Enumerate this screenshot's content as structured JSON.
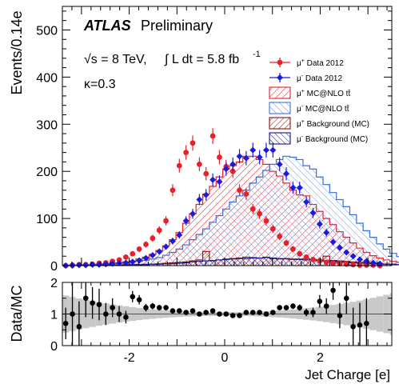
{
  "chart_data": [
    {
      "type": "histogram",
      "experiment": "ATLAS",
      "status": "Preliminary",
      "energy_label": "√s = 8 TeV,",
      "lumi_label": "∫ L dt = 5.8 fb",
      "lumi_sup": "-1",
      "kappa_label": "κ=0.3",
      "ylabel": "Events/0.14e",
      "ylim": [
        0,
        550
      ],
      "yticks": [
        0,
        100,
        200,
        300,
        400,
        500
      ],
      "bin_width": 0.14,
      "bin_start": -3.4,
      "series": [
        {
          "name": "μ⁺ MC@NLO tt̄",
          "kind": "signal_mc",
          "color": "#e8202a",
          "hatch": "up",
          "values": [
            0,
            1,
            1,
            2,
            2,
            3,
            4,
            5,
            6,
            8,
            10,
            14,
            18,
            24,
            32,
            42,
            55,
            70,
            90,
            110,
            130,
            152,
            168,
            188,
            205,
            212,
            220,
            232,
            232,
            225,
            215,
            200,
            190,
            175,
            160,
            150,
            148,
            130,
            115,
            100,
            87,
            72,
            60,
            48,
            37,
            28,
            21,
            16,
            12,
            9,
            7,
            5,
            4,
            3,
            2,
            2,
            1
          ]
        },
        {
          "name": "μ⁻ MC@NLO tt̄",
          "kind": "signal_mc",
          "color": "#3a6fd8",
          "hatch": "down",
          "values": [
            0,
            1,
            1,
            1,
            2,
            2,
            3,
            4,
            5,
            6,
            8,
            9,
            11,
            14,
            17,
            22,
            28,
            35,
            44,
            55,
            66,
            78,
            92,
            106,
            120,
            135,
            148,
            160,
            175,
            188,
            202,
            215,
            225,
            232,
            230,
            225,
            212,
            205,
            188,
            172,
            155,
            140,
            125,
            108,
            90,
            74,
            60,
            46,
            35,
            26,
            19,
            14,
            10,
            7,
            5,
            3,
            2
          ]
        },
        {
          "name": "μ⁺ Background (MC)",
          "kind": "background_mc",
          "color": "#8b1010",
          "hatch": "cross",
          "values": [
            0,
            0,
            0,
            0,
            0,
            1,
            1,
            1,
            1,
            2,
            2,
            2,
            3,
            3,
            4,
            5,
            6,
            7,
            8,
            10,
            12,
            30,
            11,
            12,
            14,
            15,
            16,
            18,
            17,
            16,
            18,
            15,
            14,
            14,
            13,
            14,
            15,
            13,
            12,
            20,
            11,
            10,
            9,
            8,
            7,
            6,
            5,
            4,
            3,
            3,
            2,
            2,
            1,
            1,
            1,
            0,
            0
          ]
        },
        {
          "name": "μ⁻ Background (MC)",
          "kind": "background_mc",
          "color": "#101088",
          "hatch": "cross",
          "values": [
            0,
            0,
            0,
            0,
            0,
            0,
            1,
            1,
            1,
            1,
            2,
            2,
            2,
            3,
            3,
            4,
            4,
            5,
            6,
            8,
            9,
            10,
            10,
            12,
            13,
            14,
            15,
            15,
            16,
            16,
            17,
            16,
            15,
            15,
            14,
            13,
            12,
            12,
            11,
            10,
            9,
            8,
            7,
            6,
            5,
            5,
            4,
            3,
            3,
            2,
            2,
            1,
            1,
            1,
            0,
            0,
            0
          ]
        },
        {
          "name": "μ⁺ Data 2012",
          "kind": "data",
          "color": "#e8202a",
          "marker": "circle",
          "points": [
            {
              "x": -3.33,
              "y": 0
            },
            {
              "x": -3.19,
              "y": 1
            },
            {
              "x": -3.05,
              "y": 2
            },
            {
              "x": -2.91,
              "y": 2
            },
            {
              "x": -2.77,
              "y": 3
            },
            {
              "x": -2.63,
              "y": 5
            },
            {
              "x": -2.49,
              "y": 6
            },
            {
              "x": -2.35,
              "y": 9
            },
            {
              "x": -2.21,
              "y": 12
            },
            {
              "x": -2.07,
              "y": 18
            },
            {
              "x": -1.93,
              "y": 25
            },
            {
              "x": -1.79,
              "y": 35
            },
            {
              "x": -1.65,
              "y": 45
            },
            {
              "x": -1.51,
              "y": 58
            },
            {
              "x": -1.37,
              "y": 75
            },
            {
              "x": -1.23,
              "y": 95
            },
            {
              "x": -1.09,
              "y": 160
            },
            {
              "x": -0.95,
              "y": 212
            },
            {
              "x": -0.81,
              "y": 240
            },
            {
              "x": -0.67,
              "y": 260
            },
            {
              "x": -0.53,
              "y": 215
            },
            {
              "x": -0.39,
              "y": 195
            },
            {
              "x": -0.25,
              "y": 275
            },
            {
              "x": -0.11,
              "y": 230
            },
            {
              "x": 0.03,
              "y": 210
            },
            {
              "x": 0.17,
              "y": 200
            },
            {
              "x": 0.31,
              "y": 160
            },
            {
              "x": 0.45,
              "y": 152
            },
            {
              "x": 0.59,
              "y": 120
            },
            {
              "x": 0.73,
              "y": 110
            },
            {
              "x": 0.87,
              "y": 95
            },
            {
              "x": 1.01,
              "y": 78
            },
            {
              "x": 1.15,
              "y": 62
            },
            {
              "x": 1.29,
              "y": 48
            },
            {
              "x": 1.43,
              "y": 35
            },
            {
              "x": 1.57,
              "y": 25
            },
            {
              "x": 1.71,
              "y": 18
            },
            {
              "x": 1.85,
              "y": 13
            },
            {
              "x": 1.99,
              "y": 10
            },
            {
              "x": 2.13,
              "y": 7
            },
            {
              "x": 2.27,
              "y": 5
            },
            {
              "x": 2.41,
              "y": 4
            },
            {
              "x": 2.55,
              "y": 3
            },
            {
              "x": 2.69,
              "y": 2
            },
            {
              "x": 2.83,
              "y": 1
            },
            {
              "x": 2.97,
              "y": 1
            },
            {
              "x": 3.11,
              "y": 1
            },
            {
              "x": 3.25,
              "y": 0
            }
          ]
        },
        {
          "name": "μ⁻ Data 2012",
          "kind": "data",
          "color": "#1a1ae0",
          "marker": "diamond",
          "points": [
            {
              "x": -3.33,
              "y": 0
            },
            {
              "x": -3.19,
              "y": 0
            },
            {
              "x": -3.05,
              "y": 1
            },
            {
              "x": -2.91,
              "y": 1
            },
            {
              "x": -2.77,
              "y": 2
            },
            {
              "x": -2.63,
              "y": 2
            },
            {
              "x": -2.49,
              "y": 3
            },
            {
              "x": -2.35,
              "y": 4
            },
            {
              "x": -2.21,
              "y": 5
            },
            {
              "x": -2.07,
              "y": 6
            },
            {
              "x": -1.93,
              "y": 8
            },
            {
              "x": -1.79,
              "y": 11
            },
            {
              "x": -1.65,
              "y": 16
            },
            {
              "x": -1.51,
              "y": 22
            },
            {
              "x": -1.37,
              "y": 30
            },
            {
              "x": -1.23,
              "y": 40
            },
            {
              "x": -1.09,
              "y": 52
            },
            {
              "x": -0.95,
              "y": 65
            },
            {
              "x": -0.81,
              "y": 95
            },
            {
              "x": -0.67,
              "y": 110
            },
            {
              "x": -0.53,
              "y": 140
            },
            {
              "x": -0.39,
              "y": 150
            },
            {
              "x": -0.25,
              "y": 182
            },
            {
              "x": -0.11,
              "y": 178
            },
            {
              "x": 0.03,
              "y": 205
            },
            {
              "x": 0.17,
              "y": 215
            },
            {
              "x": 0.31,
              "y": 232
            },
            {
              "x": 0.45,
              "y": 228
            },
            {
              "x": 0.59,
              "y": 245
            },
            {
              "x": 0.73,
              "y": 230
            },
            {
              "x": 0.87,
              "y": 245
            },
            {
              "x": 1.01,
              "y": 245
            },
            {
              "x": 1.15,
              "y": 215
            },
            {
              "x": 1.29,
              "y": 195
            },
            {
              "x": 1.43,
              "y": 165
            },
            {
              "x": 1.57,
              "y": 165
            },
            {
              "x": 1.71,
              "y": 135
            },
            {
              "x": 1.85,
              "y": 112
            },
            {
              "x": 1.99,
              "y": 88
            },
            {
              "x": 2.13,
              "y": 70
            },
            {
              "x": 2.27,
              "y": 50
            },
            {
              "x": 2.41,
              "y": 38
            },
            {
              "x": 2.55,
              "y": 28
            },
            {
              "x": 2.69,
              "y": 20
            },
            {
              "x": 2.83,
              "y": 13
            },
            {
              "x": 2.97,
              "y": 9
            },
            {
              "x": 3.11,
              "y": 6
            },
            {
              "x": 3.25,
              "y": 4
            }
          ]
        }
      ],
      "legend": [
        {
          "label": "μ",
          "sup": "+",
          "rest": " Data 2012",
          "style": "data-red"
        },
        {
          "label": "μ",
          "sup": "-",
          "rest": " Data 2012",
          "style": "data-blue"
        },
        {
          "label": "μ",
          "sup": "+",
          "rest": " MC@NLO tt̄",
          "style": "box-red"
        },
        {
          "label": "μ",
          "sup": "-",
          "rest": " MC@NLO tt̄",
          "style": "box-blue"
        },
        {
          "label": "μ",
          "sup": "+",
          "rest": " Background (MC)",
          "style": "box-darkred"
        },
        {
          "label": "μ",
          "sup": "-",
          "rest": " Background (MC)",
          "style": "box-darkblue"
        }
      ],
      "legend_position": "top-right"
    },
    {
      "type": "ratio",
      "ylabel": "Data/MC",
      "xlabel": "Jet Charge [e]",
      "xlim": [
        -3.4,
        3.5
      ],
      "xticks": [
        -2,
        0,
        2
      ],
      "ylim": [
        0,
        2
      ],
      "yticks": [
        0,
        1,
        2
      ],
      "reference_line": 1,
      "band_color": "#c8c8c8",
      "points": [
        {
          "x": -3.33,
          "y": 0.7,
          "err": 0.5
        },
        {
          "x": -3.19,
          "y": 1.0,
          "err": 1.0
        },
        {
          "x": -3.05,
          "y": 0.6,
          "err": 0.8
        },
        {
          "x": -2.91,
          "y": 1.5,
          "err": 0.6
        },
        {
          "x": -2.77,
          "y": 1.35,
          "err": 0.5
        },
        {
          "x": -2.63,
          "y": 1.3,
          "err": 0.5
        },
        {
          "x": -2.49,
          "y": 1.0,
          "err": 0.35
        },
        {
          "x": -2.35,
          "y": 1.2,
          "err": 0.3
        },
        {
          "x": -2.21,
          "y": 1.0,
          "err": 0.25
        },
        {
          "x": -2.07,
          "y": 0.9,
          "err": 0.2
        },
        {
          "x": -1.93,
          "y": 1.55,
          "err": 0.18
        },
        {
          "x": -1.79,
          "y": 1.45,
          "err": 0.15
        },
        {
          "x": -1.65,
          "y": 1.2,
          "err": 0.12
        },
        {
          "x": -1.51,
          "y": 1.25,
          "err": 0.1
        },
        {
          "x": -1.37,
          "y": 1.2,
          "err": 0.09
        },
        {
          "x": -1.23,
          "y": 1.2,
          "err": 0.08
        },
        {
          "x": -1.09,
          "y": 1.1,
          "err": 0.07
        },
        {
          "x": -0.95,
          "y": 1.1,
          "err": 0.06
        },
        {
          "x": -0.81,
          "y": 1.05,
          "err": 0.05
        },
        {
          "x": -0.67,
          "y": 1.1,
          "err": 0.05
        },
        {
          "x": -0.53,
          "y": 1.0,
          "err": 0.05
        },
        {
          "x": -0.39,
          "y": 1.05,
          "err": 0.05
        },
        {
          "x": -0.25,
          "y": 1.1,
          "err": 0.05
        },
        {
          "x": -0.11,
          "y": 1.0,
          "err": 0.05
        },
        {
          "x": 0.03,
          "y": 1.0,
          "err": 0.05
        },
        {
          "x": 0.17,
          "y": 0.95,
          "err": 0.05
        },
        {
          "x": 0.31,
          "y": 0.95,
          "err": 0.05
        },
        {
          "x": 0.45,
          "y": 1.05,
          "err": 0.05
        },
        {
          "x": 0.59,
          "y": 1.05,
          "err": 0.05
        },
        {
          "x": 0.73,
          "y": 1.05,
          "err": 0.05
        },
        {
          "x": 0.87,
          "y": 1.0,
          "err": 0.05
        },
        {
          "x": 1.01,
          "y": 1.05,
          "err": 0.06
        },
        {
          "x": 1.15,
          "y": 1.2,
          "err": 0.07
        },
        {
          "x": 1.29,
          "y": 1.2,
          "err": 0.08
        },
        {
          "x": 1.43,
          "y": 1.25,
          "err": 0.09
        },
        {
          "x": 1.57,
          "y": 1.2,
          "err": 0.1
        },
        {
          "x": 1.71,
          "y": 1.05,
          "err": 0.12
        },
        {
          "x": 1.85,
          "y": 1.05,
          "err": 0.15
        },
        {
          "x": 1.99,
          "y": 1.4,
          "err": 0.2
        },
        {
          "x": 2.13,
          "y": 1.25,
          "err": 0.25
        },
        {
          "x": 2.27,
          "y": 1.75,
          "err": 0.3
        },
        {
          "x": 2.41,
          "y": 0.95,
          "err": 0.4
        },
        {
          "x": 2.55,
          "y": 1.5,
          "err": 0.5
        },
        {
          "x": 2.69,
          "y": 0.6,
          "err": 0.6
        },
        {
          "x": 2.83,
          "y": 0.65,
          "err": 0.7
        },
        {
          "x": 2.97,
          "y": 0.7,
          "err": 0.8
        }
      ]
    }
  ]
}
